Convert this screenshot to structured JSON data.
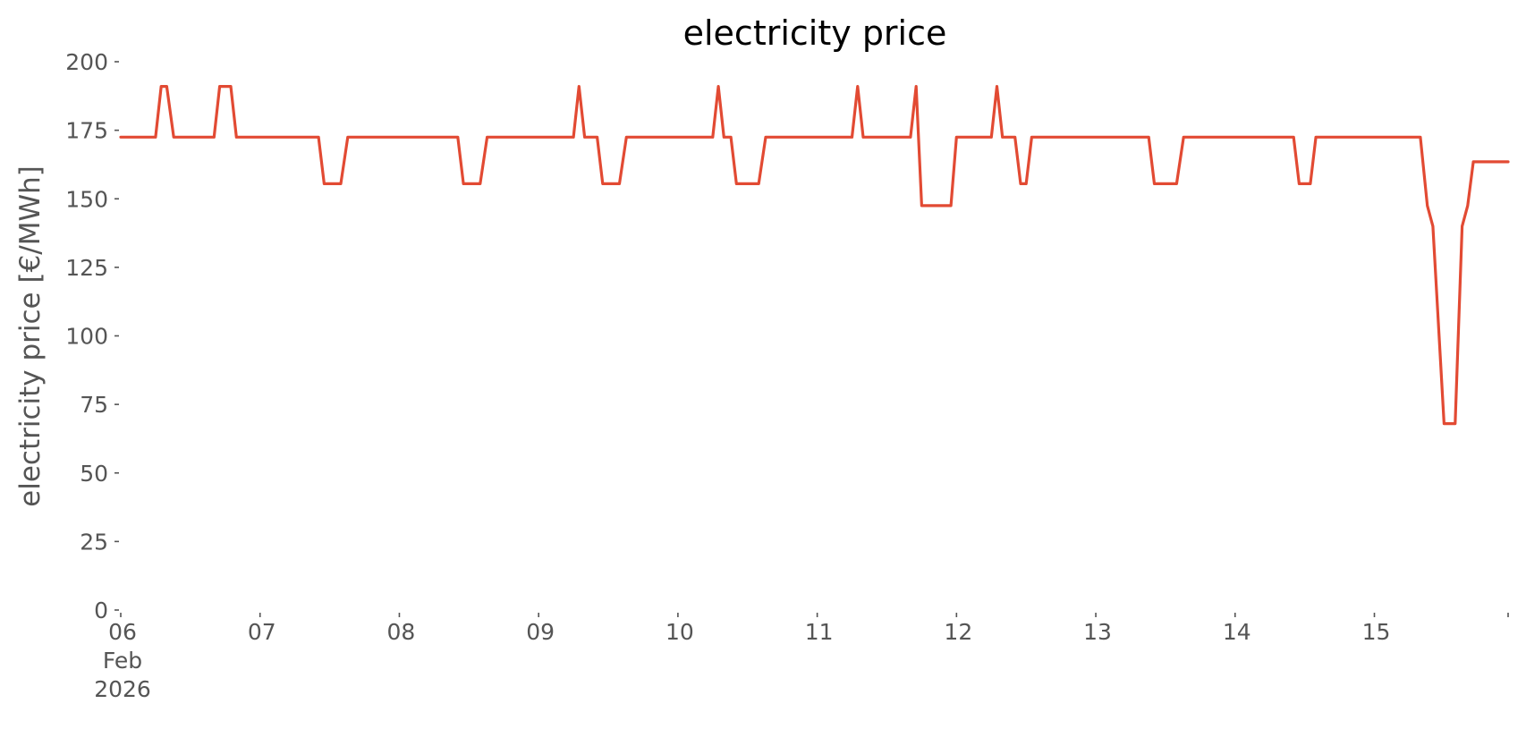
{
  "chart_data": {
    "type": "line",
    "title": "electricity price",
    "ylabel": "electricity price [€/MWh]",
    "xlabel": "",
    "ylim": [
      0,
      200
    ],
    "xlim": [
      0,
      9.96
    ],
    "x_unit": "days from 06 Feb 2026",
    "yticks": [
      0,
      25,
      50,
      75,
      100,
      125,
      150,
      175,
      200
    ],
    "xticks": [
      {
        "x": 0,
        "lines": [
          "06",
          "Feb",
          "2026"
        ]
      },
      {
        "x": 1,
        "lines": [
          "07"
        ]
      },
      {
        "x": 2,
        "lines": [
          "08"
        ]
      },
      {
        "x": 3,
        "lines": [
          "09"
        ]
      },
      {
        "x": 4,
        "lines": [
          "10"
        ]
      },
      {
        "x": 5,
        "lines": [
          "11"
        ]
      },
      {
        "x": 6,
        "lines": [
          "12"
        ]
      },
      {
        "x": 7,
        "lines": [
          "13"
        ]
      },
      {
        "x": 8,
        "lines": [
          "14"
        ]
      },
      {
        "x": 9,
        "lines": [
          "15"
        ]
      }
    ],
    "grid": false,
    "series": [
      {
        "color": "#E24A33",
        "points": [
          [
            0.0,
            172.5
          ],
          [
            0.25,
            172.5
          ],
          [
            0.29,
            191
          ],
          [
            0.33,
            191
          ],
          [
            0.38,
            172.5
          ],
          [
            0.67,
            172.5
          ],
          [
            0.71,
            191
          ],
          [
            0.79,
            191
          ],
          [
            0.83,
            172.5
          ],
          [
            1.42,
            172.5
          ],
          [
            1.46,
            155.5
          ],
          [
            1.58,
            155.5
          ],
          [
            1.63,
            172.5
          ],
          [
            2.42,
            172.5
          ],
          [
            2.46,
            155.5
          ],
          [
            2.58,
            155.5
          ],
          [
            2.63,
            172.5
          ],
          [
            3.25,
            172.5
          ],
          [
            3.29,
            191
          ],
          [
            3.33,
            172.5
          ],
          [
            3.42,
            172.5
          ],
          [
            3.46,
            155.5
          ],
          [
            3.58,
            155.5
          ],
          [
            3.63,
            172.5
          ],
          [
            4.25,
            172.5
          ],
          [
            4.29,
            191
          ],
          [
            4.33,
            172.5
          ],
          [
            4.38,
            172.5
          ],
          [
            4.42,
            155.5
          ],
          [
            4.58,
            155.5
          ],
          [
            4.63,
            172.5
          ],
          [
            5.25,
            172.5
          ],
          [
            5.29,
            191
          ],
          [
            5.33,
            172.5
          ],
          [
            5.67,
            172.5
          ],
          [
            5.71,
            191
          ],
          [
            5.75,
            147.5
          ],
          [
            5.96,
            147.5
          ],
          [
            6.0,
            172.5
          ],
          [
            6.25,
            172.5
          ],
          [
            6.29,
            191
          ],
          [
            6.33,
            172.5
          ],
          [
            6.42,
            172.5
          ],
          [
            6.46,
            155.5
          ],
          [
            6.5,
            155.5
          ],
          [
            6.54,
            172.5
          ],
          [
            7.38,
            172.5
          ],
          [
            7.42,
            155.5
          ],
          [
            7.58,
            155.5
          ],
          [
            7.63,
            172.5
          ],
          [
            8.42,
            172.5
          ],
          [
            8.46,
            155.5
          ],
          [
            8.54,
            155.5
          ],
          [
            8.58,
            172.5
          ],
          [
            9.33,
            172.5
          ],
          [
            9.38,
            147.5
          ],
          [
            9.42,
            140
          ],
          [
            9.5,
            68
          ],
          [
            9.58,
            68
          ],
          [
            9.63,
            140
          ],
          [
            9.67,
            147.5
          ],
          [
            9.71,
            163.5
          ],
          [
            9.96,
            163.5
          ]
        ]
      }
    ]
  }
}
